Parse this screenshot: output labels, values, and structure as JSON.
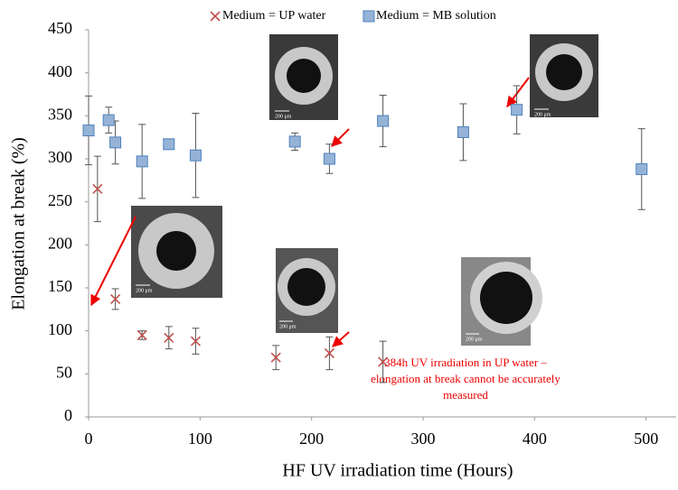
{
  "chart_data": {
    "type": "scatter",
    "x_label": "HF UV irradiation time (Hours)",
    "y_label": "Elongation at break (%)",
    "xlim": [
      0,
      527
    ],
    "xticks": [
      0,
      100,
      200,
      300,
      400,
      500
    ],
    "ylim": [
      0,
      450
    ],
    "yticks": [
      0,
      50,
      100,
      150,
      200,
      250,
      300,
      350,
      400,
      450
    ],
    "grid": false,
    "legend": "top",
    "series": [
      {
        "name": "Medium = UP water",
        "color": "#c0504d",
        "marker": "x",
        "x": [
          8,
          24,
          48,
          72,
          96,
          168,
          216,
          264
        ],
        "values": [
          265,
          137,
          95,
          92,
          88,
          69,
          74,
          64
        ],
        "errors": [
          38,
          12,
          5,
          13,
          15,
          14,
          19,
          24
        ]
      },
      {
        "name": "Medium = MB solution",
        "color": "#4f81bd",
        "marker": "square",
        "x": [
          0,
          18,
          24,
          48,
          72,
          96,
          185,
          216,
          264,
          336,
          384,
          496
        ],
        "values": [
          333,
          345,
          319,
          297,
          317,
          304,
          320,
          300,
          344,
          331,
          357,
          288
        ],
        "errors": [
          40,
          15,
          25,
          43,
          5,
          49,
          10,
          17,
          30,
          33,
          28,
          47
        ]
      }
    ],
    "annotation": [
      "384h UV irradiation in UP water –",
      "elongation at break cannot be accurately",
      "measured"
    ],
    "image_scale_label": "200 μm"
  }
}
